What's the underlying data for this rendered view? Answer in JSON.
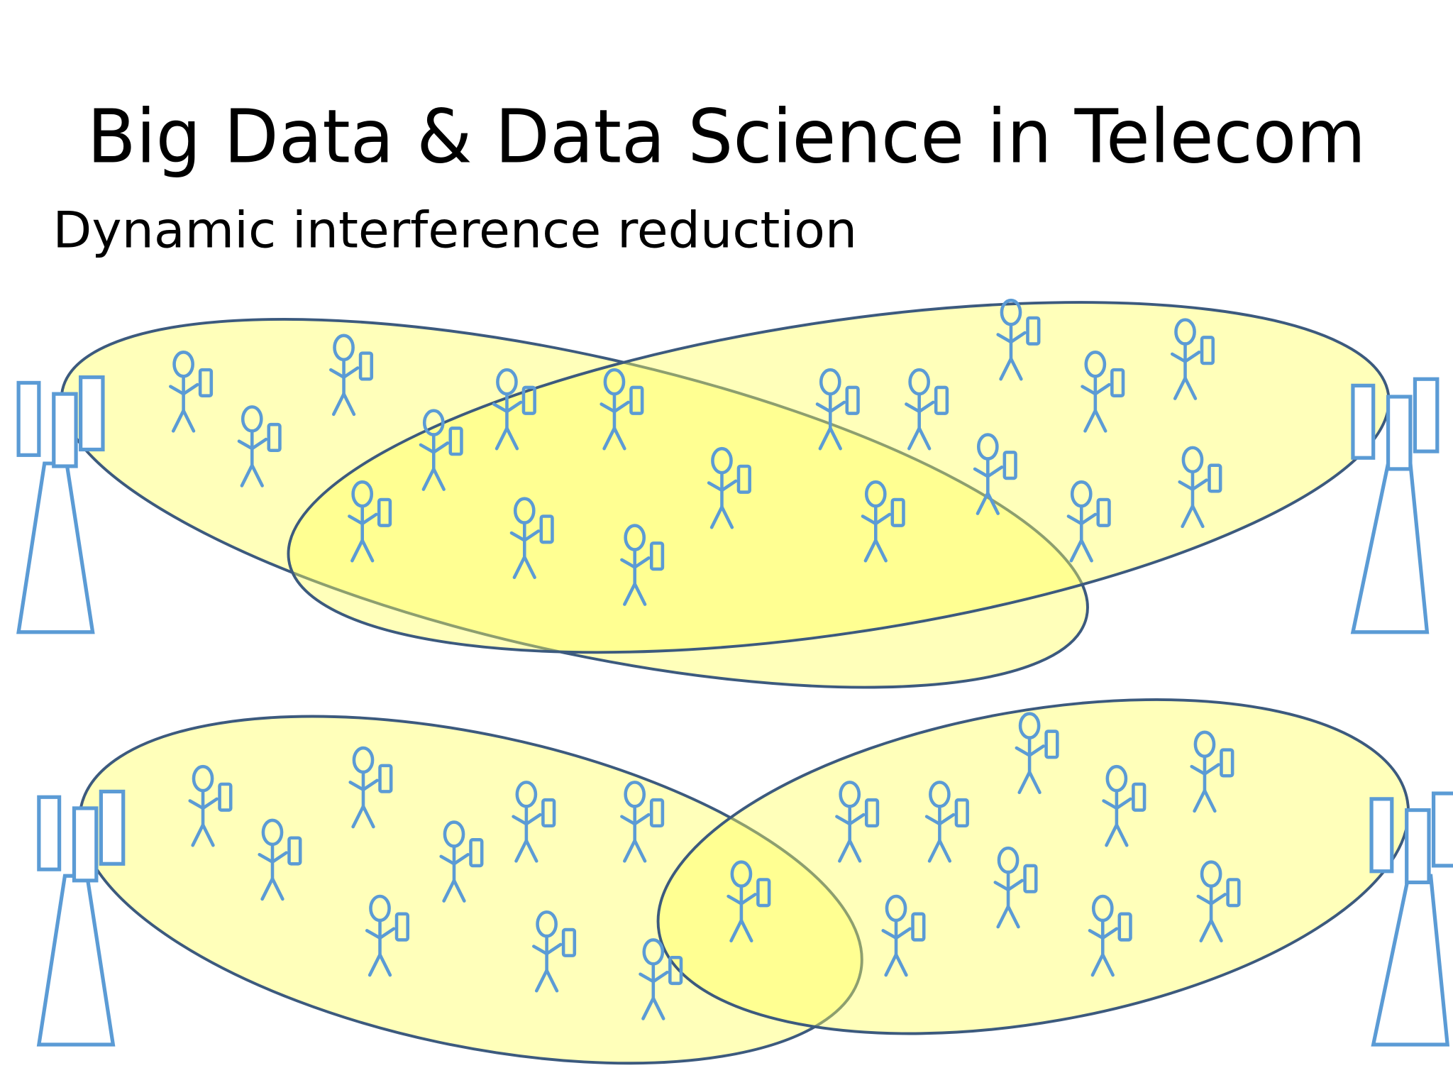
{
  "header": {
    "title": "Big Data & Data Science in Telecom",
    "subtitle": "Dynamic interference reduction"
  }
}
